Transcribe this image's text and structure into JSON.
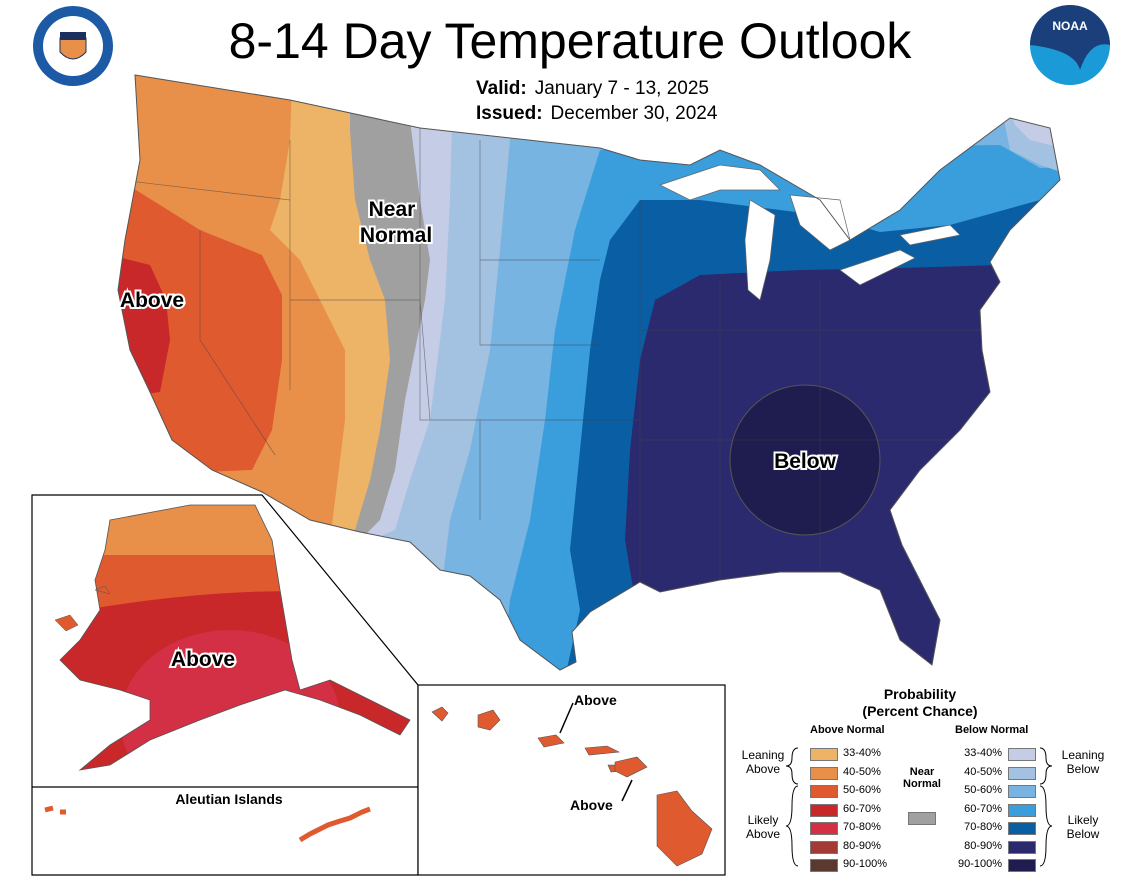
{
  "header": {
    "title": "8-14 Day Temperature Outlook",
    "valid_label": "Valid:",
    "valid_value": "January 7 - 13, 2025",
    "issued_label": "Issued:",
    "issued_value": "December 30, 2024"
  },
  "logos": {
    "left": "DEPARTMENT OF COMMERCE UNITED STATES OF AMERICA",
    "right": "NOAA"
  },
  "map_labels": {
    "near_normal_1": "Near",
    "near_normal_2": "Normal",
    "above_west": "Above",
    "below_east": "Below",
    "above_alaska": "Above",
    "aleutian": "Aleutian Islands",
    "above_hawaii_1": "Above",
    "above_hawaii_2": "Above"
  },
  "legend": {
    "title_1": "Probability",
    "title_2": "(Percent Chance)",
    "above_header": "Above Normal",
    "below_header": "Below Normal",
    "near_1": "Near",
    "near_2": "Normal",
    "near_color": "#a0a0a0",
    "leaning_above_1": "Leaning",
    "leaning_above_2": "Above",
    "likely_above_1": "Likely",
    "likely_above_2": "Above",
    "leaning_below_1": "Leaning",
    "leaning_below_2": "Below",
    "likely_below_1": "Likely",
    "likely_below_2": "Below",
    "above": [
      {
        "range": "33-40%",
        "color": "#edb468"
      },
      {
        "range": "40-50%",
        "color": "#e8904a"
      },
      {
        "range": "50-60%",
        "color": "#e05a30"
      },
      {
        "range": "60-70%",
        "color": "#c8282a"
      },
      {
        "range": "70-80%",
        "color": "#d32f45"
      },
      {
        "range": "80-90%",
        "color": "#a33a35"
      },
      {
        "range": "90-100%",
        "color": "#5a3a30"
      }
    ],
    "below": [
      {
        "range": "33-40%",
        "color": "#c4cce6"
      },
      {
        "range": "40-50%",
        "color": "#a3c1e0"
      },
      {
        "range": "50-60%",
        "color": "#78b4e2"
      },
      {
        "range": "60-70%",
        "color": "#3a9ddc"
      },
      {
        "range": "70-80%",
        "color": "#0a5fa4"
      },
      {
        "range": "80-90%",
        "color": "#2c2a6e"
      },
      {
        "range": "90-100%",
        "color": "#1f1c4f"
      }
    ]
  }
}
